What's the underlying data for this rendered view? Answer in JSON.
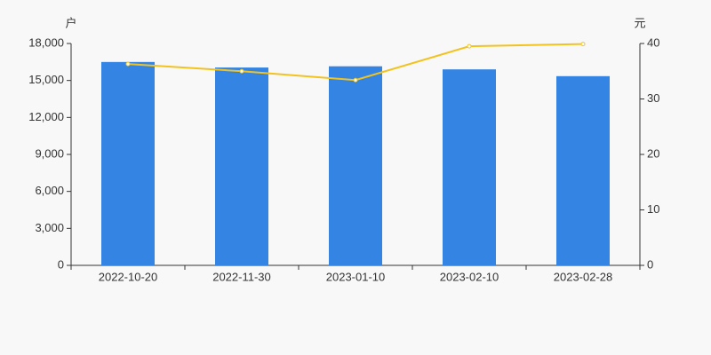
{
  "chart_data": {
    "type": "bar-line",
    "y_title": "户",
    "y2_title": "元",
    "categories": [
      "2022-10-20",
      "2022-11-30",
      "2023-01-10",
      "2023-02-10",
      "2023-02-28"
    ],
    "series": [
      {
        "type": "bar",
        "color": "#3384e3",
        "values": [
          16500,
          16050,
          16150,
          15900,
          15350
        ]
      },
      {
        "type": "line",
        "axis": "y2",
        "color": "#f2c31e",
        "values": [
          36.3,
          35.0,
          33.4,
          39.5,
          39.9
        ]
      }
    ],
    "ylim": [
      0,
      18000
    ],
    "yticks": [
      0,
      {
        "value": 3000,
        "label": "3,000"
      },
      {
        "value": 6000,
        "label": "6,000"
      },
      {
        "value": 9000,
        "label": "9,000"
      },
      {
        "value": 12000,
        "label": "12,000"
      },
      {
        "value": 15000,
        "label": "15,000"
      },
      {
        "value": 18000,
        "label": "18,000"
      }
    ],
    "y2lim": [
      0,
      40
    ],
    "y2ticks": [
      0,
      10,
      20,
      30,
      40
    ]
  }
}
